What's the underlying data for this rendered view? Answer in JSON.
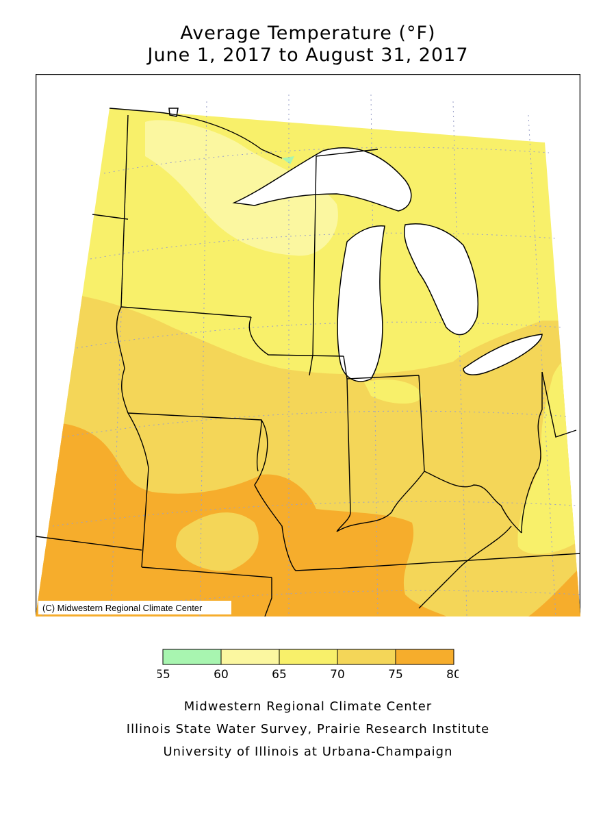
{
  "title": {
    "line1": "Average Temperature (°F)",
    "line2": "June 1, 2017 to August 31, 2017"
  },
  "map": {
    "copyright": "(C) Midwestern Regional Climate Center"
  },
  "legend": {
    "bins": [
      {
        "from": 55,
        "to": 60,
        "color": "#a8f5b0"
      },
      {
        "from": 60,
        "to": 65,
        "color": "#fbf7a0"
      },
      {
        "from": 65,
        "to": 70,
        "color": "#f8f06a"
      },
      {
        "from": 70,
        "to": 75,
        "color": "#f4d658"
      },
      {
        "from": 75,
        "to": 80,
        "color": "#f6ad2c"
      }
    ],
    "labels": [
      "55",
      "60",
      "65",
      "70",
      "75",
      "80"
    ]
  },
  "credits": {
    "line1": "Midwestern Regional Climate Center",
    "line2": "Illinois State Water Survey, Prairie Research Institute",
    "line3": "University of Illinois at Urbana-Champaign"
  },
  "colors": {
    "lake": "#ffffff",
    "border": "#000000",
    "grid": "#9aa0c8"
  }
}
